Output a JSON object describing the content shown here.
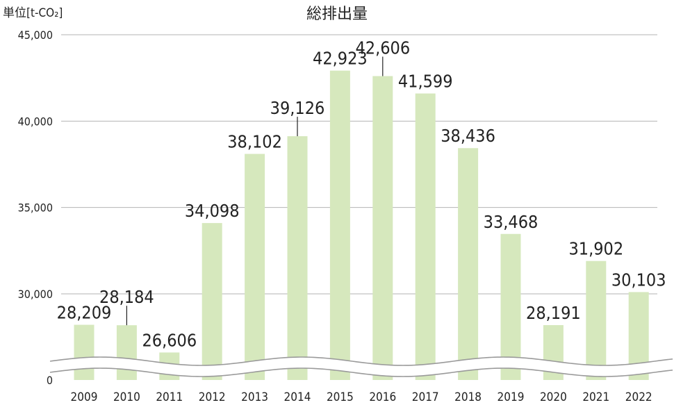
{
  "chart_data": {
    "type": "bar",
    "title": "総排出量",
    "unit_label": "単位[t-CO₂]",
    "categories": [
      "2009",
      "2010",
      "2011",
      "2012",
      "2013",
      "2014",
      "2015",
      "2016",
      "2017",
      "2018",
      "2019",
      "2020",
      "2021",
      "2022"
    ],
    "values": [
      28209,
      28184,
      26606,
      34098,
      38102,
      39126,
      42923,
      42606,
      41599,
      38436,
      33468,
      28191,
      31902,
      30103
    ],
    "data_labels": [
      "28,209",
      "28,184",
      "26,606",
      "34,098",
      "38,102",
      "39,126",
      "42,923",
      "42,606",
      "41,599",
      "38,436",
      "33,468",
      "28,191",
      "31,902",
      "30,103"
    ],
    "yticks": [
      {
        "value": 0,
        "label": "0"
      },
      {
        "value": 30000,
        "label": "30,000"
      },
      {
        "value": 35000,
        "label": "35,000"
      },
      {
        "value": 40000,
        "label": "40,000"
      },
      {
        "value": 45000,
        "label": "45,000"
      }
    ],
    "axis_break": true,
    "grid": true,
    "legend": "none",
    "colors": {
      "bar": "#d6e8bd",
      "grid": "#b3b3b3",
      "text": "#222222"
    }
  }
}
